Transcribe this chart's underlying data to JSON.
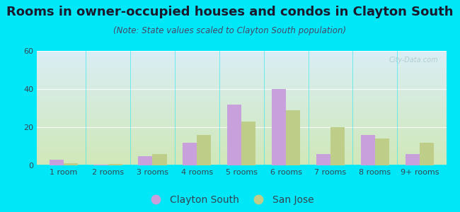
{
  "title": "Rooms in owner-occupied houses and condos in Clayton South",
  "subtitle": "(Note: State values scaled to Clayton South population)",
  "categories": [
    "1 room",
    "2 rooms",
    "3 rooms",
    "4 rooms",
    "5 rooms",
    "6 rooms",
    "7 rooms",
    "8 rooms",
    "9+ rooms"
  ],
  "clayton_south": [
    3,
    0.5,
    5,
    12,
    32,
    40,
    6,
    16,
    6
  ],
  "san_jose": [
    1,
    0.8,
    6,
    16,
    23,
    29,
    20,
    14,
    12
  ],
  "clayton_color": "#c8a0dc",
  "sanjose_color": "#bece88",
  "background_outer": "#00e8f8",
  "background_plot_top": "#daeef5",
  "background_plot_bottom": "#d0e8b8",
  "grid_color": "#c8dcc8",
  "ylim": [
    0,
    60
  ],
  "yticks": [
    0,
    20,
    40,
    60
  ],
  "bar_width": 0.32,
  "title_fontsize": 13,
  "subtitle_fontsize": 8.5,
  "tick_fontsize": 8,
  "legend_fontsize": 10,
  "title_color": "#1a1a2e",
  "subtitle_color": "#444466",
  "tick_color": "#334455",
  "watermark_color": "#a8c8cc"
}
